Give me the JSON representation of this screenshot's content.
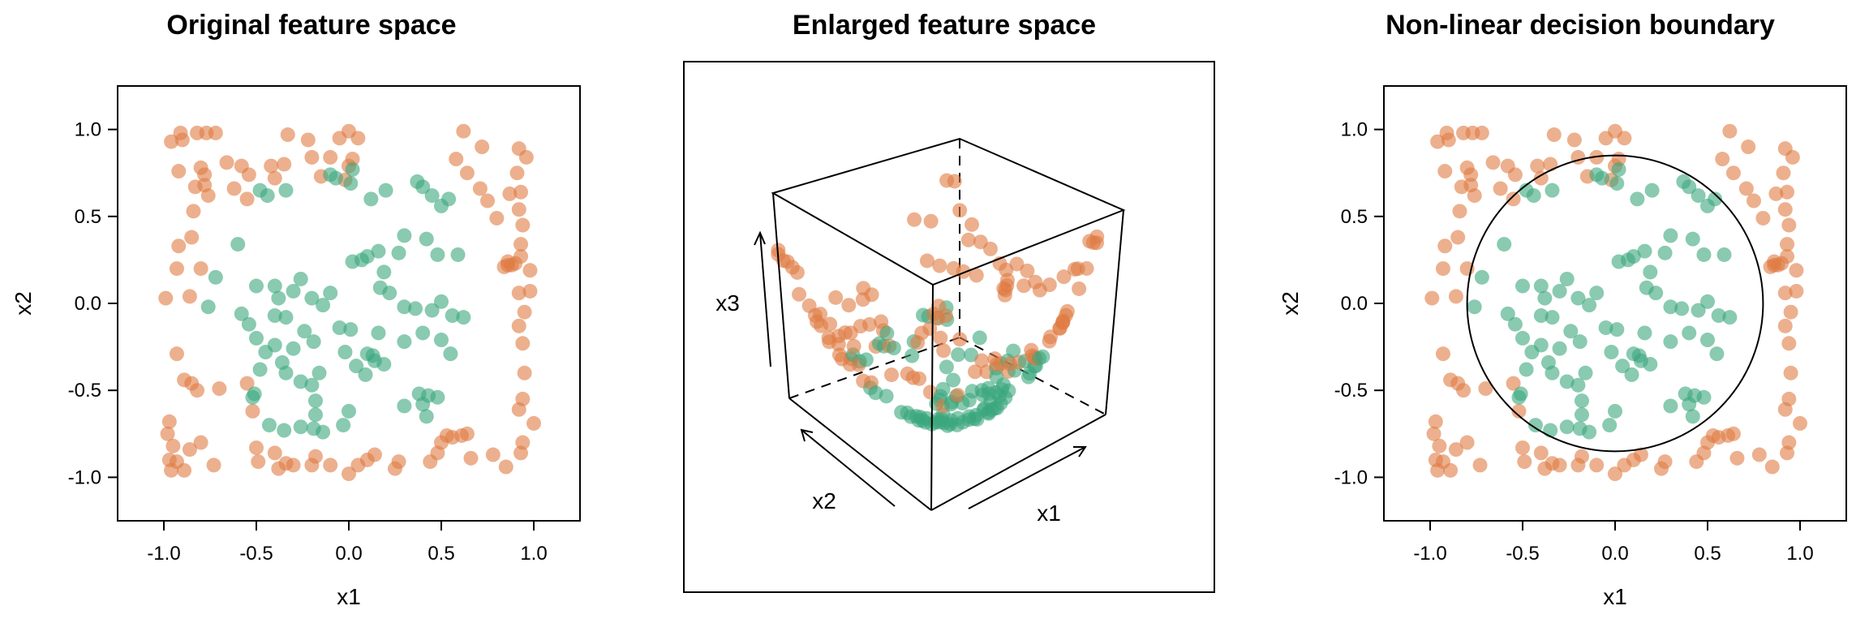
{
  "colors": {
    "outer": "#e07b43",
    "inner": "#3aa67d"
  },
  "chart_data": [
    {
      "type": "scatter",
      "title": "Original feature space",
      "xlabel": "x1",
      "ylabel": "x2",
      "xlim": [
        -1.25,
        1.25
      ],
      "ylim": [
        -1.25,
        1.25
      ],
      "xticks": [
        "-1.0",
        "-0.5",
        "0.0",
        "0.5",
        "1.0"
      ],
      "yticks": [
        "1.0",
        "0.5",
        "0.0",
        "-0.5",
        "-1.0"
      ],
      "grid": false,
      "legend": "none"
    },
    {
      "type": "scatter",
      "title": "Enlarged feature space",
      "axis_labels": {
        "x1": "x1",
        "x2": "x2",
        "x3": "x3"
      },
      "grid": false,
      "legend": "none"
    },
    {
      "type": "scatter",
      "title": "Non-linear decision boundary",
      "xlabel": "x1",
      "ylabel": "x2",
      "xlim": [
        -1.25,
        1.25
      ],
      "ylim": [
        -1.25,
        1.25
      ],
      "xticks": [
        "-1.0",
        "-0.5",
        "0.0",
        "0.5",
        "1.0"
      ],
      "yticks": [
        "1.0",
        "0.5",
        "0.0",
        "-0.5",
        "-1.0"
      ],
      "decision_boundary": {
        "shape": "circle",
        "center": [
          0,
          0
        ],
        "radius": 0.8
      },
      "grid": false,
      "legend": "none"
    }
  ],
  "points": {
    "outer": [
      [
        -0.96,
        0.93
      ],
      [
        -0.91,
        0.98
      ],
      [
        -0.9,
        0.94
      ],
      [
        -0.82,
        0.98
      ],
      [
        -0.77,
        0.98
      ],
      [
        -0.72,
        0.98
      ],
      [
        -0.92,
        0.76
      ],
      [
        -0.8,
        0.78
      ],
      [
        -0.78,
        0.74
      ],
      [
        -0.83,
        0.67
      ],
      [
        -0.76,
        0.62
      ],
      [
        -0.66,
        0.81
      ],
      [
        -0.58,
        0.79
      ],
      [
        -0.54,
        0.74
      ],
      [
        -0.62,
        0.66
      ],
      [
        -0.55,
        0.6
      ],
      [
        -0.42,
        0.79
      ],
      [
        -0.4,
        0.72
      ],
      [
        -0.35,
        0.8
      ],
      [
        -0.33,
        0.97
      ],
      [
        -0.22,
        0.94
      ],
      [
        -0.2,
        0.84
      ],
      [
        -0.1,
        0.84
      ],
      [
        -0.05,
        0.95
      ],
      [
        0.0,
        0.99
      ],
      [
        0.02,
        0.83
      ],
      [
        0.05,
        0.95
      ],
      [
        0.0,
        0.79
      ],
      [
        -0.15,
        0.73
      ],
      [
        -0.02,
        0.71
      ],
      [
        0.62,
        0.99
      ],
      [
        0.58,
        0.83
      ],
      [
        0.64,
        0.75
      ],
      [
        0.72,
        0.9
      ],
      [
        0.71,
        0.66
      ],
      [
        0.75,
        0.59
      ],
      [
        0.8,
        0.49
      ],
      [
        0.87,
        0.63
      ],
      [
        0.92,
        0.89
      ],
      [
        0.91,
        0.75
      ],
      [
        0.93,
        0.64
      ],
      [
        0.96,
        0.84
      ],
      [
        0.92,
        0.54
      ],
      [
        0.94,
        0.45
      ],
      [
        0.93,
        0.34
      ],
      [
        0.93,
        0.27
      ],
      [
        0.98,
        0.19
      ],
      [
        0.86,
        0.22
      ],
      [
        0.84,
        0.21
      ],
      [
        0.88,
        0.22
      ],
      [
        0.92,
        0.06
      ],
      [
        0.95,
        -0.05
      ],
      [
        0.92,
        -0.13
      ],
      [
        0.94,
        -0.23
      ],
      [
        0.95,
        -0.4
      ],
      [
        0.94,
        -0.55
      ],
      [
        0.92,
        -0.61
      ],
      [
        0.94,
        -0.8
      ],
      [
        1.0,
        -0.69
      ],
      [
        0.93,
        -0.86
      ],
      [
        0.85,
        -0.94
      ],
      [
        0.78,
        -0.87
      ],
      [
        0.66,
        -0.89
      ],
      [
        0.61,
        -0.76
      ],
      [
        0.53,
        -0.76
      ],
      [
        0.56,
        -0.77
      ],
      [
        0.64,
        -0.75
      ],
      [
        0.48,
        -0.86
      ],
      [
        0.5,
        -0.8
      ],
      [
        0.44,
        -0.91
      ],
      [
        0.25,
        -0.95
      ],
      [
        0.27,
        -0.91
      ],
      [
        0.1,
        -0.9
      ],
      [
        0.14,
        -0.87
      ],
      [
        0.05,
        -0.93
      ],
      [
        0.0,
        -0.98
      ],
      [
        -0.1,
        -0.93
      ],
      [
        -0.18,
        -0.88
      ],
      [
        -0.2,
        -0.93
      ],
      [
        -0.3,
        -0.93
      ],
      [
        -0.38,
        -0.95
      ],
      [
        -0.34,
        -0.92
      ],
      [
        -0.4,
        -0.86
      ],
      [
        -0.49,
        -0.91
      ],
      [
        -0.5,
        -0.83
      ],
      [
        -0.52,
        -0.62
      ],
      [
        -0.55,
        -0.46
      ],
      [
        -0.7,
        -0.49
      ],
      [
        -0.85,
        -0.46
      ],
      [
        -0.82,
        -0.5
      ],
      [
        -0.89,
        -0.44
      ],
      [
        -0.95,
        -0.82
      ],
      [
        -0.97,
        -0.9
      ],
      [
        -0.93,
        -0.91
      ],
      [
        -0.89,
        -0.96
      ],
      [
        -0.96,
        -0.96
      ],
      [
        -0.73,
        -0.93
      ],
      [
        -0.8,
        -0.8
      ],
      [
        -0.86,
        -0.84
      ],
      [
        -0.98,
        -0.75
      ],
      [
        -0.97,
        -0.68
      ],
      [
        -0.93,
        -0.29
      ],
      [
        -0.99,
        0.03
      ],
      [
        -0.86,
        0.04
      ],
      [
        -0.93,
        0.2
      ],
      [
        -0.92,
        0.33
      ],
      [
        -0.8,
        0.2
      ],
      [
        -0.84,
        0.53
      ],
      [
        -0.85,
        0.38
      ],
      [
        -0.78,
        0.68
      ],
      [
        0.98,
        0.07
      ],
      [
        0.9,
        0.23
      ],
      [
        0.86,
        0.24
      ]
    ],
    "inner": [
      [
        -0.6,
        0.34
      ],
      [
        -0.48,
        0.65
      ],
      [
        -0.44,
        0.62
      ],
      [
        -0.34,
        0.65
      ],
      [
        -0.1,
        0.74
      ],
      [
        -0.07,
        0.72
      ],
      [
        0.01,
        0.69
      ],
      [
        0.02,
        0.77
      ],
      [
        0.12,
        0.6
      ],
      [
        0.2,
        0.65
      ],
      [
        0.37,
        0.7
      ],
      [
        0.4,
        0.67
      ],
      [
        0.45,
        0.62
      ],
      [
        0.5,
        0.56
      ],
      [
        0.54,
        0.6
      ],
      [
        0.3,
        0.39
      ],
      [
        0.27,
        0.29
      ],
      [
        0.42,
        0.37
      ],
      [
        0.48,
        0.28
      ],
      [
        0.59,
        0.28
      ],
      [
        -0.72,
        0.15
      ],
      [
        -0.76,
        -0.02
      ],
      [
        -0.58,
        -0.06
      ],
      [
        -0.5,
        0.1
      ],
      [
        -0.4,
        0.1
      ],
      [
        -0.38,
        0.03
      ],
      [
        -0.3,
        0.07
      ],
      [
        -0.26,
        0.14
      ],
      [
        -0.4,
        -0.07
      ],
      [
        -0.34,
        -0.08
      ],
      [
        -0.2,
        0.03
      ],
      [
        -0.14,
        -0.01
      ],
      [
        -0.1,
        0.06
      ],
      [
        -0.24,
        -0.16
      ],
      [
        -0.19,
        -0.22
      ],
      [
        -0.05,
        -0.14
      ],
      [
        0.01,
        -0.15
      ],
      [
        0.02,
        0.24
      ],
      [
        0.07,
        0.25
      ],
      [
        0.1,
        0.27
      ],
      [
        0.16,
        0.3
      ],
      [
        0.19,
        0.18
      ],
      [
        0.17,
        0.09
      ],
      [
        0.22,
        0.06
      ],
      [
        0.16,
        -0.17
      ],
      [
        0.14,
        -0.33
      ],
      [
        0.19,
        -0.35
      ],
      [
        0.09,
        -0.41
      ],
      [
        0.3,
        -0.22
      ],
      [
        0.4,
        -0.17
      ],
      [
        0.5,
        -0.21
      ],
      [
        0.3,
        -0.02
      ],
      [
        0.36,
        -0.03
      ],
      [
        0.45,
        -0.04
      ],
      [
        0.5,
        0.01
      ],
      [
        0.56,
        -0.07
      ],
      [
        0.62,
        -0.08
      ],
      [
        0.55,
        -0.29
      ],
      [
        0.38,
        -0.52
      ],
      [
        0.43,
        -0.53
      ],
      [
        0.48,
        -0.54
      ],
      [
        0.3,
        -0.59
      ],
      [
        0.4,
        -0.58
      ],
      [
        0.42,
        -0.65
      ],
      [
        -0.54,
        -0.12
      ],
      [
        -0.5,
        -0.2
      ],
      [
        -0.45,
        -0.28
      ],
      [
        -0.4,
        -0.24
      ],
      [
        -0.36,
        -0.34
      ],
      [
        -0.3,
        -0.26
      ],
      [
        -0.34,
        -0.4
      ],
      [
        -0.26,
        -0.45
      ],
      [
        -0.2,
        -0.47
      ],
      [
        -0.16,
        -0.4
      ],
      [
        -0.18,
        -0.56
      ],
      [
        -0.18,
        -0.64
      ],
      [
        -0.48,
        -0.38
      ],
      [
        -0.51,
        -0.52
      ],
      [
        -0.52,
        -0.54
      ],
      [
        -0.43,
        -0.7
      ],
      [
        -0.35,
        -0.73
      ],
      [
        -0.26,
        -0.71
      ],
      [
        -0.19,
        -0.72
      ],
      [
        -0.14,
        -0.74
      ],
      [
        -0.03,
        -0.7
      ],
      [
        0.0,
        -0.62
      ],
      [
        -0.02,
        -0.28
      ],
      [
        0.1,
        -0.29
      ],
      [
        0.04,
        -0.36
      ],
      [
        0.13,
        -0.3
      ]
    ]
  }
}
